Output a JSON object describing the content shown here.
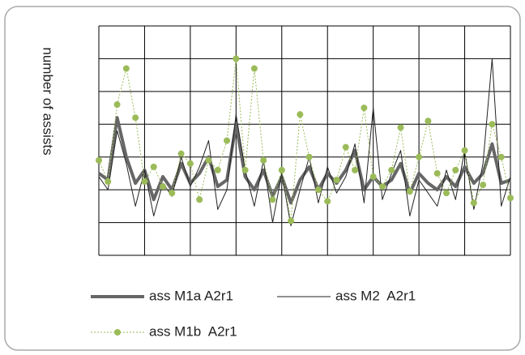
{
  "chart_data": {
    "type": "line",
    "y_label": "number of assists",
    "x": [
      0,
      0.2,
      0.4,
      0.6,
      0.8,
      1.0,
      1.2,
      1.4,
      1.6,
      1.8,
      2.0,
      2.2,
      2.4,
      2.6,
      2.8,
      3.0,
      3.2,
      3.4,
      3.6,
      3.8,
      4.0,
      4.2,
      4.4,
      4.6,
      4.8,
      5.0,
      5.2,
      5.4,
      5.6,
      5.8,
      6.0,
      6.2,
      6.4,
      6.6,
      6.8,
      7.0,
      7.2,
      7.4,
      7.6,
      7.8,
      8.0,
      8.2,
      8.4,
      8.6,
      8.8,
      9.0
    ],
    "xlim": [
      0,
      9
    ],
    "xticks": [
      0,
      1,
      2,
      3,
      4,
      5,
      6,
      7,
      8,
      9
    ],
    "ylim": [
      0,
      7
    ],
    "yticks": [
      0,
      1,
      2,
      3,
      4,
      5,
      6,
      7
    ],
    "grid": true,
    "series": [
      {
        "name": "ass M1a A2r1",
        "color": "#666666",
        "width": 4,
        "values": [
          2.5,
          2.3,
          4.2,
          3.0,
          2.2,
          2.6,
          1.7,
          2.4,
          2.0,
          2.8,
          2.2,
          2.5,
          3.0,
          2.1,
          2.3,
          4.0,
          2.4,
          2.0,
          2.6,
          1.8,
          2.4,
          1.6,
          2.3,
          2.7,
          2.0,
          2.5,
          2.2,
          2.6,
          3.2,
          2.0,
          2.4,
          2.1,
          2.3,
          2.8,
          1.9,
          2.5,
          2.2,
          2.0,
          2.4,
          2.1,
          2.7,
          2.2,
          2.5,
          3.4,
          2.2,
          2.3
        ]
      },
      {
        "name": "ass M2  A2r1",
        "color": "#222222",
        "width": 1,
        "values": [
          2.4,
          2.0,
          3.8,
          2.8,
          1.5,
          2.6,
          1.2,
          2.2,
          1.8,
          3.0,
          2.1,
          2.7,
          3.5,
          1.4,
          2.0,
          4.3,
          2.6,
          1.5,
          2.9,
          1.0,
          2.5,
          0.9,
          2.0,
          3.0,
          1.6,
          2.7,
          1.9,
          2.4,
          3.4,
          1.6,
          4.5,
          1.7,
          2.5,
          3.2,
          1.2,
          2.3,
          1.9,
          1.5,
          2.6,
          1.7,
          3.2,
          1.4,
          2.8,
          6.0,
          1.5,
          2.4
        ]
      },
      {
        "name": "ass M1b  A2r1",
        "color": "#9bbb59",
        "width": 1,
        "dashed": true,
        "markers": true,
        "values": [
          2.9,
          2.25,
          4.6,
          5.7,
          4.2,
          2.25,
          2.7,
          2.1,
          1.9,
          3.1,
          2.8,
          1.7,
          2.9,
          2.6,
          3.5,
          6.0,
          2.6,
          5.7,
          2.9,
          1.7,
          2.6,
          1.05,
          4.3,
          3.0,
          2.0,
          1.65,
          2.3,
          3.3,
          2.6,
          4.5,
          2.4,
          2.1,
          2.6,
          3.9,
          1.95,
          3.0,
          4.1,
          2.5,
          1.9,
          2.6,
          3.2,
          1.6,
          2.15,
          4.0,
          3.0,
          1.75
        ]
      }
    ]
  }
}
